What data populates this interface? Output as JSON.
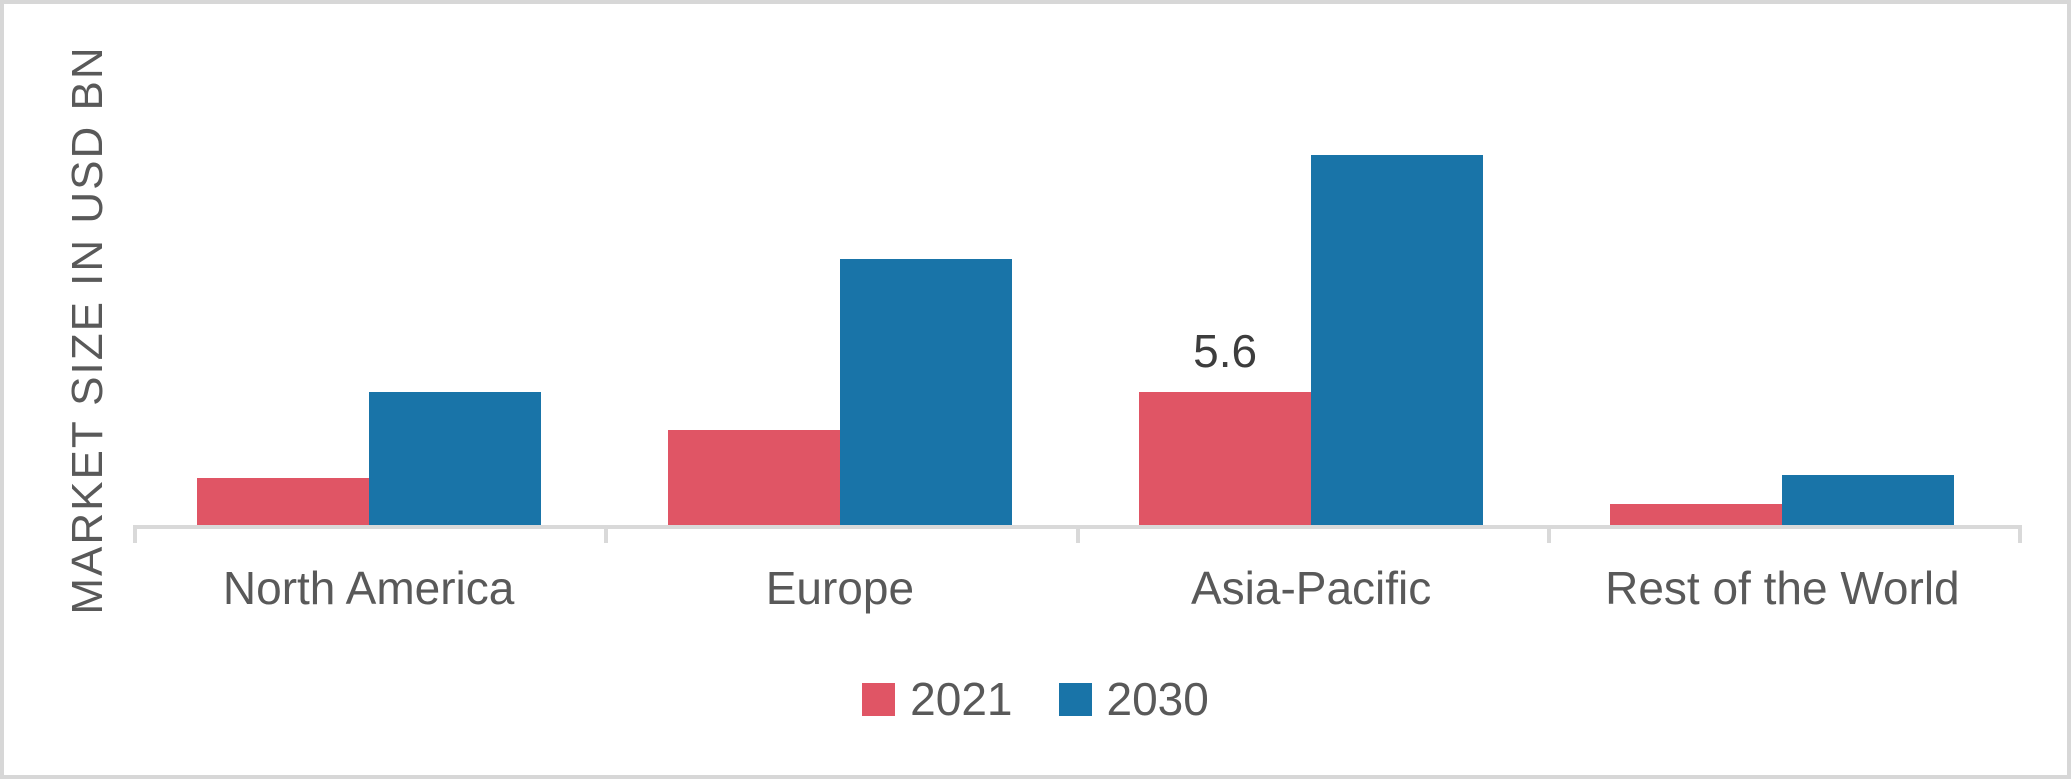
{
  "chart_data": {
    "type": "bar",
    "title": "",
    "xlabel": "",
    "ylabel": "MARKET SIZE IN USD BN",
    "categories": [
      "North America",
      "Europe",
      "Asia-Pacific",
      "Rest of the World"
    ],
    "series": [
      {
        "name": "2021",
        "color": "#e05565",
        "values": [
          2.0,
          4.0,
          5.6,
          0.9
        ]
      },
      {
        "name": "2030",
        "color": "#1974a8",
        "values": [
          5.6,
          11.2,
          15.6,
          2.1
        ]
      }
    ],
    "data_labels": [
      {
        "series_index": 0,
        "category_index": 2,
        "text": "5.6"
      }
    ],
    "ylim": [
      0,
      16.5
    ],
    "grid": false,
    "legend_position": "bottom",
    "colors": {
      "axis": "#d9d9d9",
      "axis_text": "#595959",
      "data_label_text": "#3d3d3d",
      "frame_border": "#d7d7d7",
      "background": "#ffffff"
    }
  }
}
